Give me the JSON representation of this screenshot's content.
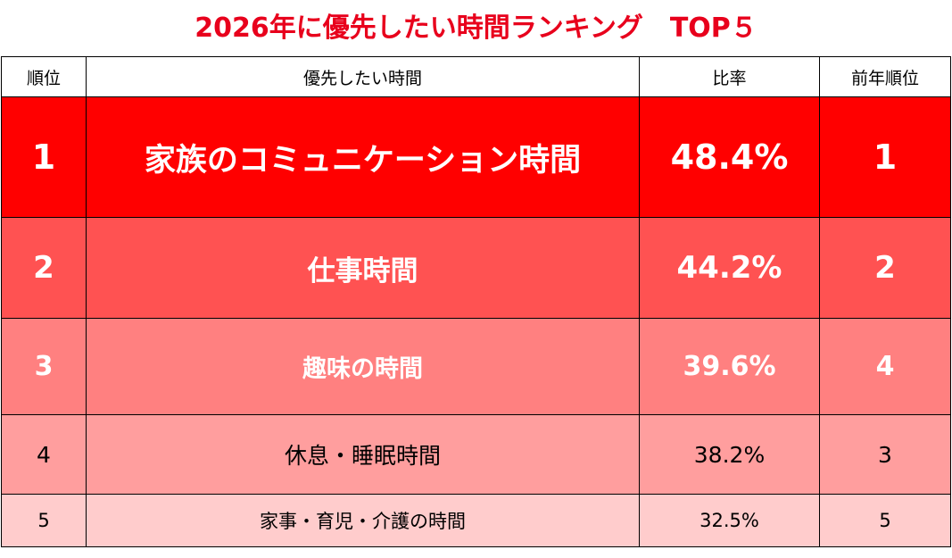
{
  "title": "2026年に優先したい時間ランキング　TOP５",
  "table": {
    "headers": [
      "順位",
      "優先したい時間",
      "比率",
      "前年順位"
    ]
  },
  "colors": {
    "title": "#e8001c",
    "rows": [
      "#ff0000",
      "#ff5252",
      "#ff8080",
      "#ff9e9e",
      "#ffcccc"
    ]
  },
  "chart_data": {
    "type": "table",
    "title": "2026年に優先したい時間ランキング　TOP５",
    "columns": [
      "順位",
      "優先したい時間",
      "比率",
      "前年順位"
    ],
    "rows": [
      {
        "rank": "1",
        "item": "家族のコミュニケーション時間",
        "ratio": "48.4%",
        "prev": "1"
      },
      {
        "rank": "2",
        "item": "仕事時間",
        "ratio": "44.2%",
        "prev": "2"
      },
      {
        "rank": "3",
        "item": "趣味の時間",
        "ratio": "39.6%",
        "prev": "4"
      },
      {
        "rank": "4",
        "item": "休息・睡眠時間",
        "ratio": "38.2%",
        "prev": "3"
      },
      {
        "rank": "5",
        "item": "家事・育児・介護の時間",
        "ratio": "32.5%",
        "prev": "5"
      }
    ]
  }
}
